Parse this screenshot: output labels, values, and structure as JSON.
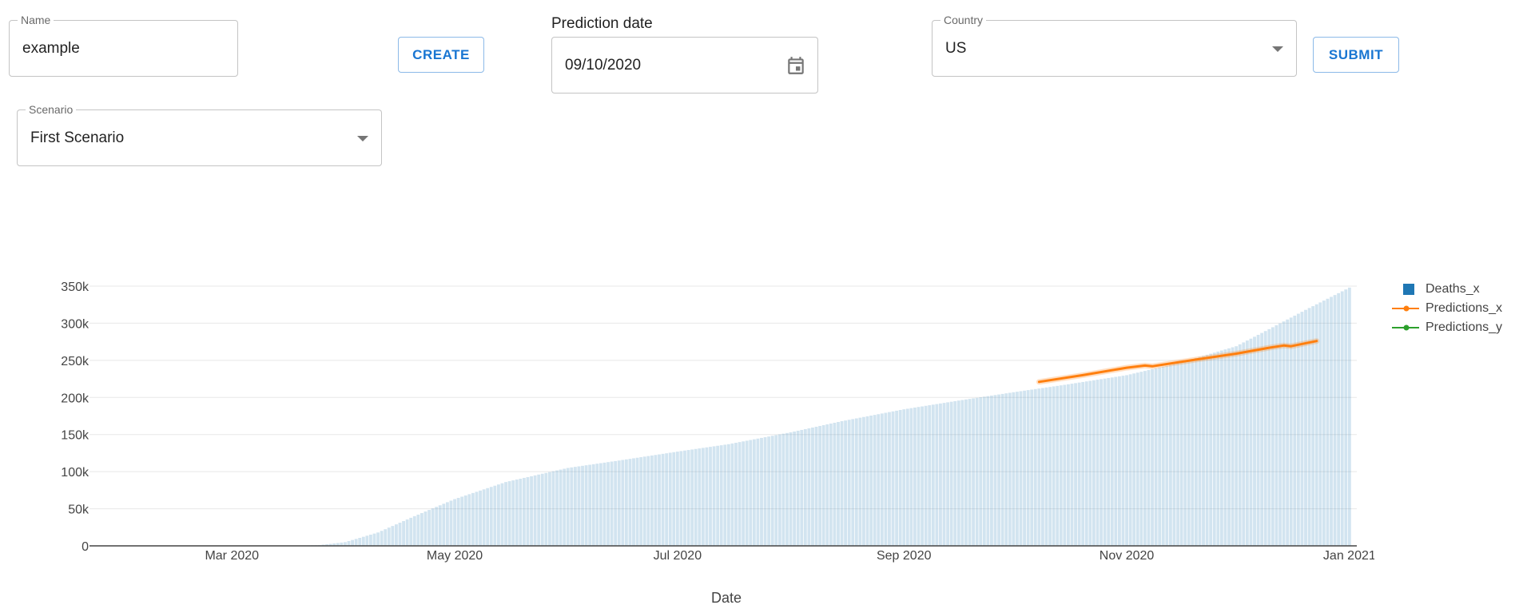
{
  "form": {
    "name": {
      "label": "Name",
      "value": "example"
    },
    "create_label": "CREATE",
    "prediction_date": {
      "label": "Prediction date",
      "value": "09/10/2020"
    },
    "country": {
      "label": "Country",
      "value": "US"
    },
    "submit_label": "SUBMIT",
    "scenario": {
      "label": "Scenario",
      "value": "First Scenario"
    }
  },
  "chart_data": {
    "type": "bar",
    "xlabel": "Date",
    "ylabel": "",
    "ylim": [
      0,
      350000
    ],
    "xlim": [
      "2020-01-22",
      "2021-01-03"
    ],
    "x_ticks": [
      "Mar 2020",
      "May 2020",
      "Jul 2020",
      "Sep 2020",
      "Nov 2020",
      "Jan 2021"
    ],
    "y_ticks": [
      "0",
      "50k",
      "100k",
      "150k",
      "200k",
      "250k",
      "300k",
      "350k"
    ],
    "grid": true,
    "legend_position": "right",
    "series": [
      {
        "name": "Deaths_x",
        "type": "bar",
        "color": "#1f77b4",
        "points": [
          [
            "2020-01-22",
            0
          ],
          [
            "2020-03-15",
            60
          ],
          [
            "2020-03-25",
            1000
          ],
          [
            "2020-04-01",
            5000
          ],
          [
            "2020-04-10",
            18000
          ],
          [
            "2020-04-20",
            40000
          ],
          [
            "2020-05-01",
            63000
          ],
          [
            "2020-05-15",
            86000
          ],
          [
            "2020-06-01",
            105000
          ],
          [
            "2020-06-15",
            115000
          ],
          [
            "2020-07-01",
            127000
          ],
          [
            "2020-07-15",
            137000
          ],
          [
            "2020-08-01",
            153000
          ],
          [
            "2020-08-15",
            168000
          ],
          [
            "2020-09-01",
            184000
          ],
          [
            "2020-09-15",
            195000
          ],
          [
            "2020-10-01",
            207000
          ],
          [
            "2020-10-15",
            217000
          ],
          [
            "2020-11-01",
            230000
          ],
          [
            "2020-11-15",
            246000
          ],
          [
            "2020-12-01",
            269000
          ],
          [
            "2020-12-10",
            292000
          ],
          [
            "2020-12-20",
            318000
          ],
          [
            "2021-01-01",
            348000
          ]
        ]
      },
      {
        "name": "Predictions_x",
        "type": "line",
        "color": "#ff7f0e",
        "points": [
          [
            "2020-10-08",
            221000
          ],
          [
            "2020-10-20",
            230000
          ],
          [
            "2020-11-01",
            240000
          ],
          [
            "2020-11-06",
            243000
          ],
          [
            "2020-11-08",
            242000
          ],
          [
            "2020-11-20",
            251000
          ],
          [
            "2020-12-01",
            259000
          ],
          [
            "2020-12-10",
            267000
          ],
          [
            "2020-12-14",
            270000
          ],
          [
            "2020-12-16",
            269000
          ],
          [
            "2020-12-23",
            276000
          ]
        ]
      },
      {
        "name": "Predictions_y",
        "type": "line",
        "color": "#2ca02c",
        "points": []
      }
    ]
  }
}
